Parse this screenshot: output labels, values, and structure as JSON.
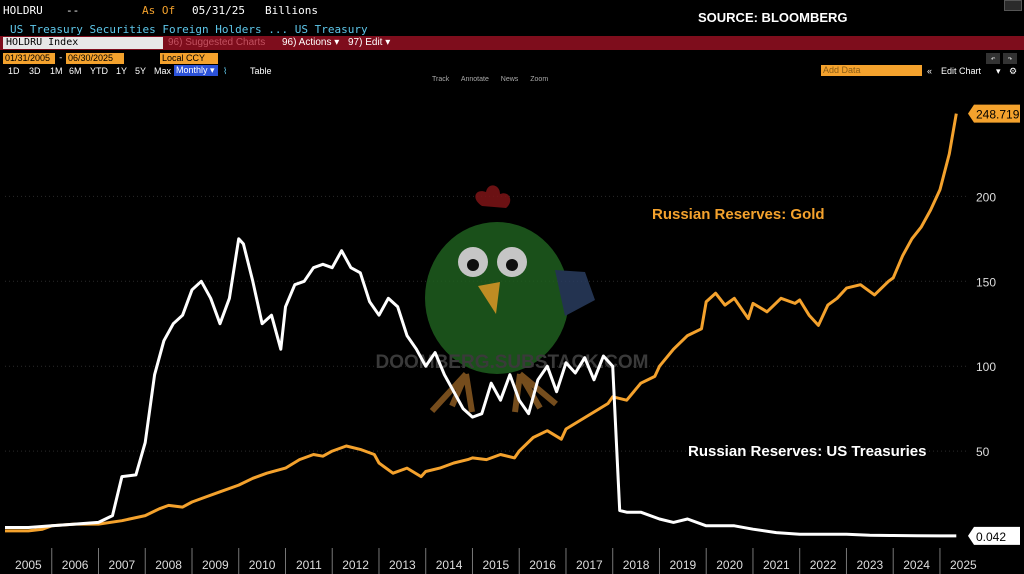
{
  "header": {
    "ticker": "HOLDRU",
    "dash": "--",
    "asof_label": "As Of",
    "asof_date": "05/31/25",
    "units": "Billions",
    "subtitle": "US Treasury Securities Foreign Holders ... US Treasury",
    "source": "SOURCE: BLOOMBERG"
  },
  "toolbar": {
    "index_field": "HOLDRU Index",
    "suggested_label": "96) Suggested Charts",
    "actions_label": "96) Actions ▾",
    "edit_label": "97) Edit ▾",
    "start_date": "01/31/2005",
    "end_date": "06/30/2025",
    "currency": "Local CCY",
    "periods": [
      "1D",
      "3D",
      "1M",
      "6M",
      "YTD",
      "1Y",
      "5Y",
      "Max"
    ],
    "frequency": "Monthly ▾",
    "table_label": "Table",
    "add_data_placeholder": "Add Data",
    "edit_chart_label": "Edit Chart",
    "tools": [
      "Track",
      "Annotate",
      "News",
      "Zoom"
    ]
  },
  "watermark": {
    "text": "DOOMBERG.SUBSTACK.COM",
    "mascot": "green-chicken-mascot"
  },
  "colors": {
    "gold": "#f4a22d",
    "treasuries": "#ffffff",
    "background": "#000000",
    "accent_blue": "#5ec7ea",
    "toolbar_red": "#7e0d1c"
  },
  "chart_data": {
    "type": "line",
    "xlabel": "",
    "ylabel": "",
    "ylim": [
      0,
      265
    ],
    "xlim": [
      2005.0,
      2025.6
    ],
    "grid": "vertical dashed year separators",
    "yticks": [
      50,
      100,
      150,
      200
    ],
    "xticks": [
      "2005",
      "2006",
      "2007",
      "2008",
      "2009",
      "2010",
      "2011",
      "2012",
      "2013",
      "2014",
      "2015",
      "2016",
      "2017",
      "2018",
      "2019",
      "2020",
      "2021",
      "2022",
      "2023",
      "2024",
      "2025"
    ],
    "last_values": [
      "248.719",
      "0.042"
    ],
    "series": [
      {
        "name": "Russian Reserves: Gold",
        "color": "#f4a22d",
        "x": [
          2005.0,
          2005.5,
          2005.8,
          2006.0,
          2006.5,
          2007.0,
          2007.5,
          2008.0,
          2008.3,
          2008.5,
          2008.8,
          2009.0,
          2009.3,
          2009.6,
          2010.0,
          2010.3,
          2010.6,
          2011.0,
          2011.3,
          2011.6,
          2011.8,
          2012.0,
          2012.3,
          2012.6,
          2012.9,
          2013.0,
          2013.3,
          2013.6,
          2013.9,
          2014.0,
          2014.3,
          2014.6,
          2014.9,
          2015.0,
          2015.3,
          2015.6,
          2015.9,
          2016.0,
          2016.3,
          2016.6,
          2016.9,
          2017.0,
          2017.3,
          2017.6,
          2017.9,
          2018.0,
          2018.3,
          2018.6,
          2018.9,
          2019.0,
          2019.3,
          2019.6,
          2019.9,
          2020.0,
          2020.2,
          2020.4,
          2020.6,
          2020.9,
          2021.0,
          2021.3,
          2021.6,
          2021.9,
          2022.0,
          2022.2,
          2022.4,
          2022.6,
          2022.8,
          2023.0,
          2023.3,
          2023.6,
          2023.9,
          2024.0,
          2024.2,
          2024.4,
          2024.6,
          2024.8,
          2025.0,
          2025.2,
          2025.35
        ],
        "values": [
          3,
          3,
          4,
          6,
          7,
          7,
          9,
          12,
          16,
          18,
          17,
          20,
          23,
          26,
          30,
          34,
          37,
          40,
          45,
          48,
          47,
          50,
          53,
          51,
          48,
          43,
          37,
          40,
          35,
          38,
          40,
          43,
          45,
          46,
          45,
          48,
          46,
          50,
          58,
          62,
          57,
          63,
          68,
          73,
          78,
          82,
          80,
          90,
          94,
          100,
          110,
          118,
          122,
          138,
          143,
          136,
          140,
          128,
          137,
          132,
          140,
          137,
          139,
          130,
          124,
          136,
          140,
          146,
          148,
          142,
          150,
          152,
          165,
          175,
          182,
          192,
          204,
          225,
          248.719
        ]
      },
      {
        "name": "Russian Reserves: US Treasuries",
        "color": "#ffffff",
        "x": [
          2005.0,
          2005.5,
          2006.0,
          2006.5,
          2007.0,
          2007.3,
          2007.5,
          2007.8,
          2008.0,
          2008.2,
          2008.4,
          2008.6,
          2008.8,
          2009.0,
          2009.2,
          2009.4,
          2009.6,
          2009.8,
          2010.0,
          2010.1,
          2010.3,
          2010.5,
          2010.7,
          2010.9,
          2011.0,
          2011.2,
          2011.4,
          2011.6,
          2011.8,
          2012.0,
          2012.2,
          2012.4,
          2012.6,
          2012.8,
          2013.0,
          2013.2,
          2013.4,
          2013.6,
          2013.8,
          2014.0,
          2014.2,
          2014.4,
          2014.6,
          2014.8,
          2015.0,
          2015.2,
          2015.4,
          2015.6,
          2015.8,
          2016.0,
          2016.2,
          2016.4,
          2016.6,
          2016.8,
          2017.0,
          2017.2,
          2017.4,
          2017.6,
          2017.8,
          2018.0,
          2018.15,
          2018.3,
          2018.6,
          2019.0,
          2019.3,
          2019.6,
          2020.0,
          2020.3,
          2020.6,
          2021.0,
          2021.5,
          2022.0,
          2022.5,
          2023.0,
          2023.5,
          2024.0,
          2024.5,
          2025.0,
          2025.35
        ],
        "values": [
          5,
          5,
          6,
          7,
          8,
          12,
          35,
          36,
          55,
          95,
          115,
          125,
          130,
          145,
          150,
          140,
          125,
          140,
          175,
          172,
          150,
          125,
          130,
          110,
          135,
          148,
          150,
          158,
          160,
          158,
          168,
          158,
          155,
          138,
          130,
          140,
          135,
          118,
          110,
          100,
          108,
          95,
          85,
          75,
          70,
          72,
          90,
          80,
          95,
          80,
          72,
          92,
          100,
          85,
          102,
          96,
          105,
          92,
          106,
          100,
          15,
          14,
          14,
          10,
          8,
          10,
          6,
          6,
          6,
          4,
          2,
          1,
          1,
          1,
          0.5,
          0.3,
          0.1,
          0.05,
          0.042
        ]
      }
    ],
    "annotations": [
      {
        "text": "Russian Reserves: Gold",
        "color": "#f4a22d"
      },
      {
        "text": "Russian Reserves: US Treasuries",
        "color": "#ffffff"
      }
    ]
  }
}
